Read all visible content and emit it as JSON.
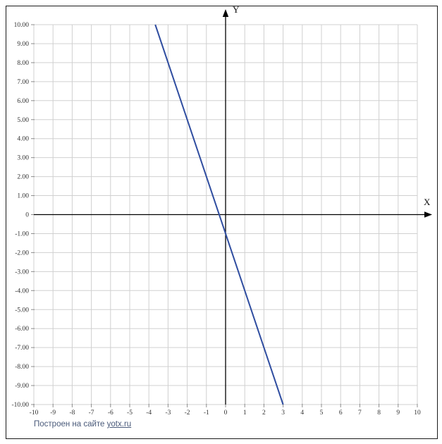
{
  "window": {
    "background": "#ffffff",
    "border_color": "#1a1a1a"
  },
  "chart_data": {
    "type": "line",
    "title": "",
    "xlabel": "X",
    "ylabel": "Y",
    "xlim": [
      -10,
      10
    ],
    "ylim": [
      -10,
      10
    ],
    "grid": true,
    "grid_step": 1,
    "grid_color": "#d0d0d0",
    "axis_color": "#000000",
    "tick_color": "#8c8c8c",
    "tick_label_color": "#333333",
    "legend": "none",
    "x_tick_labels": [
      "-10",
      "-9",
      "-8",
      "-7",
      "-6",
      "-5",
      "-4",
      "-3",
      "-2",
      "-1",
      "0",
      "1",
      "2",
      "3",
      "4",
      "5",
      "6",
      "7",
      "8",
      "9",
      "10"
    ],
    "y_tick_labels": [
      "10.00",
      "9.00",
      "8.00",
      "7.00",
      "6.00",
      "5.00",
      "4.00",
      "3.00",
      "2.00",
      "1.00",
      "0",
      "-1.00",
      "-2.00",
      "-3.00",
      "-4.00",
      "-5.00",
      "-6.00",
      "-7.00",
      "-8.00",
      "-9.00",
      "-10.00"
    ],
    "series": [
      {
        "name": "line",
        "fit": "y = -3x - 1",
        "color": "#2f4da0",
        "width": 2,
        "points": [
          [
            -3.6667,
            10
          ],
          [
            3,
            -10
          ]
        ]
      }
    ]
  },
  "footer": {
    "prefix": "Построен на сайте ",
    "link_text": "yotx.ru",
    "color": "#4a5a7a"
  }
}
